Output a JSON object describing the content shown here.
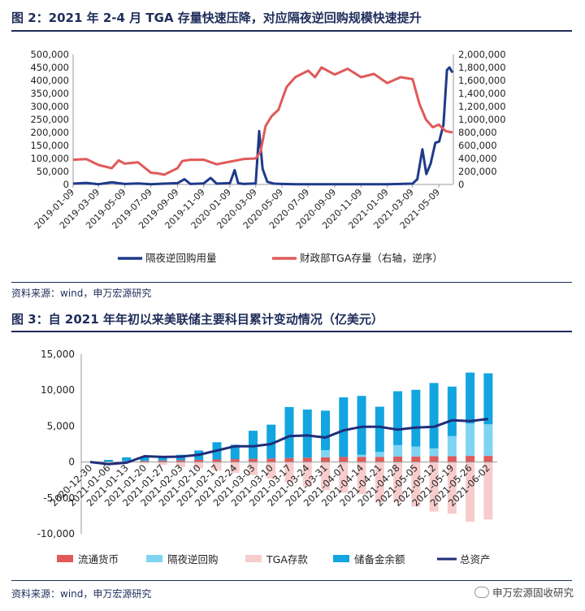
{
  "fig2": {
    "title": "图 2：2021 年 2-4 月 TGA 存量快速压降，对应隔夜逆回购规模快速提升",
    "source": "资料来源：wind，申万宏源研究"
  },
  "fig3": {
    "title": "图 3：自 2021 年年初以来美联储主要科目累计变动情况（亿美元）",
    "source": "资料来源：wind，申万宏源研究"
  },
  "watermark": "申万宏源固收研究",
  "chart_data": [
    {
      "type": "line",
      "x_ticks": [
        "2019-01-09",
        "2019-03-09",
        "2019-05-09",
        "2019-07-09",
        "2019-09-09",
        "2019-11-09",
        "2020-01-09",
        "2020-03-09",
        "2020-05-09",
        "2020-07-09",
        "2020-09-09",
        "2020-11-09",
        "2021-01-09",
        "2021-03-09",
        "2021-05-09"
      ],
      "y_left": {
        "ylim": [
          0,
          500000
        ],
        "ticks": [
          "0",
          "50,000",
          "100,000",
          "150,000",
          "200,000",
          "250,000",
          "300,000",
          "350,000",
          "400,000",
          "450,000",
          "500,000"
        ]
      },
      "y_right": {
        "ylim": [
          0,
          2000000
        ],
        "inverted": true,
        "ticks": [
          "0",
          "200,000",
          "400,000",
          "600,000",
          "800,000",
          "1,000,000",
          "1,200,000",
          "1,400,000",
          "1,600,000",
          "1,800,000",
          "2,000,000"
        ]
      },
      "series": [
        {
          "name": "隔夜逆回购用量",
          "axis": "left",
          "color": "#1f3a8a",
          "x": [
            "2019-01-09",
            "2019-02-09",
            "2019-03-09",
            "2019-04-09",
            "2019-05-09",
            "2019-06-09",
            "2019-07-09",
            "2019-08-09",
            "2019-09-09",
            "2019-09-25",
            "2019-10-09",
            "2019-11-09",
            "2019-11-25",
            "2019-12-09",
            "2020-01-09",
            "2020-01-20",
            "2020-01-28",
            "2020-02-09",
            "2020-03-09",
            "2020-03-17",
            "2020-03-25",
            "2020-04-05",
            "2020-04-20",
            "2020-05-09",
            "2020-06-09",
            "2020-07-09",
            "2020-09-09",
            "2020-11-09",
            "2021-01-09",
            "2021-02-09",
            "2021-03-09",
            "2021-03-20",
            "2021-04-01",
            "2021-04-10",
            "2021-04-20",
            "2021-05-01",
            "2021-05-10",
            "2021-05-20",
            "2021-05-28",
            "2021-06-03",
            "2021-06-10"
          ],
          "values": [
            3000,
            6000,
            1000,
            8000,
            2000,
            4000,
            1000,
            3000,
            5000,
            20000,
            2000,
            4000,
            25000,
            3000,
            5000,
            55000,
            5000,
            2000,
            4000,
            205000,
            60000,
            10000,
            3000,
            2000,
            1000,
            1000,
            1000,
            1000,
            1000,
            2000,
            3000,
            20000,
            135000,
            40000,
            80000,
            160000,
            165000,
            230000,
            440000,
            450000,
            430000
          ]
        },
        {
          "name": "财政部TGA存量（右轴，逆序）",
          "axis": "right",
          "color": "#e05a5a",
          "x": [
            "2019-01-09",
            "2019-02-09",
            "2019-03-09",
            "2019-04-09",
            "2019-04-25",
            "2019-05-09",
            "2019-06-09",
            "2019-07-09",
            "2019-07-25",
            "2019-08-09",
            "2019-09-09",
            "2019-09-20",
            "2019-10-09",
            "2019-11-09",
            "2019-12-09",
            "2020-01-09",
            "2020-02-09",
            "2020-03-09",
            "2020-03-20",
            "2020-04-01",
            "2020-04-15",
            "2020-05-01",
            "2020-05-09",
            "2020-05-20",
            "2020-06-09",
            "2020-07-09",
            "2020-07-25",
            "2020-08-09",
            "2020-09-09",
            "2020-10-09",
            "2020-11-09",
            "2020-12-09",
            "2021-01-09",
            "2021-02-09",
            "2021-03-09",
            "2021-03-25",
            "2021-04-09",
            "2021-04-25",
            "2021-05-09",
            "2021-05-25",
            "2021-06-10"
          ],
          "values": [
            380000,
            390000,
            300000,
            250000,
            370000,
            320000,
            340000,
            180000,
            170000,
            150000,
            250000,
            360000,
            380000,
            380000,
            310000,
            350000,
            390000,
            400000,
            500000,
            900000,
            1050000,
            1150000,
            1300000,
            1500000,
            1650000,
            1750000,
            1650000,
            1800000,
            1690000,
            1780000,
            1650000,
            1700000,
            1560000,
            1650000,
            1620000,
            1240000,
            1000000,
            880000,
            920000,
            820000,
            800000
          ]
        }
      ],
      "legend": "bottom"
    },
    {
      "type": "bar",
      "categories": [
        "2020-12-30",
        "2021-01-06",
        "2021-01-13",
        "2021-01-20",
        "2021-01-27",
        "2021-02-03",
        "2021-02-10",
        "2021-02-17",
        "2021-02-24",
        "2021-03-03",
        "2021-03-10",
        "2021-03-17",
        "2021-03-24",
        "2021-03-31",
        "2021-04-07",
        "2021-04-14",
        "2021-04-21",
        "2021-04-28",
        "2021-05-05",
        "2021-05-12",
        "2021-05-19",
        "2021-05-26",
        "2021-06-02"
      ],
      "ylim": [
        -10000,
        15000
      ],
      "y_ticks": [
        "15,000",
        "10,000",
        "5,000",
        "0",
        "-5,000",
        "-10,000"
      ],
      "stacked": true,
      "series": [
        {
          "name": "流通货币",
          "color": "#e05a5a",
          "values": [
            0,
            50,
            100,
            150,
            200,
            250,
            300,
            350,
            400,
            450,
            500,
            550,
            600,
            650,
            700,
            700,
            700,
            750,
            750,
            800,
            800,
            850,
            850
          ]
        },
        {
          "name": "隔夜逆回购",
          "color": "#7fd4f2",
          "values": [
            0,
            0,
            0,
            0,
            0,
            0,
            0,
            0,
            0,
            0,
            0,
            0,
            0,
            1000,
            0,
            300,
            700,
            1600,
            1400,
            1100,
            2800,
            4500,
            4400
          ]
        },
        {
          "name": "TGA存款",
          "color": "#f7cccc",
          "values": [
            0,
            -50,
            -100,
            -200,
            -400,
            -700,
            -900,
            -1200,
            -1500,
            -1800,
            -2300,
            -2800,
            -3400,
            -3900,
            -4300,
            -4500,
            -5600,
            -5600,
            -6200,
            -6900,
            -7200,
            -8300,
            -8000
          ]
        },
        {
          "name": "储备金余额",
          "color": "#12a5e0",
          "values": [
            0,
            250,
            550,
            600,
            550,
            750,
            1300,
            2400,
            2000,
            3900,
            4700,
            7100,
            6700,
            5500,
            8300,
            8200,
            6300,
            7500,
            7900,
            9100,
            6900,
            7100,
            7100
          ]
        },
        {
          "name": "总资产",
          "type": "line",
          "color": "#1f2d7a",
          "values": [
            0,
            -300,
            -100,
            800,
            700,
            750,
            1000,
            1600,
            2200,
            2200,
            2500,
            3600,
            3700,
            3400,
            4400,
            4900,
            4900,
            4500,
            4800,
            4900,
            5800,
            5700,
            6000
          ]
        }
      ],
      "legend": "bottom"
    }
  ]
}
